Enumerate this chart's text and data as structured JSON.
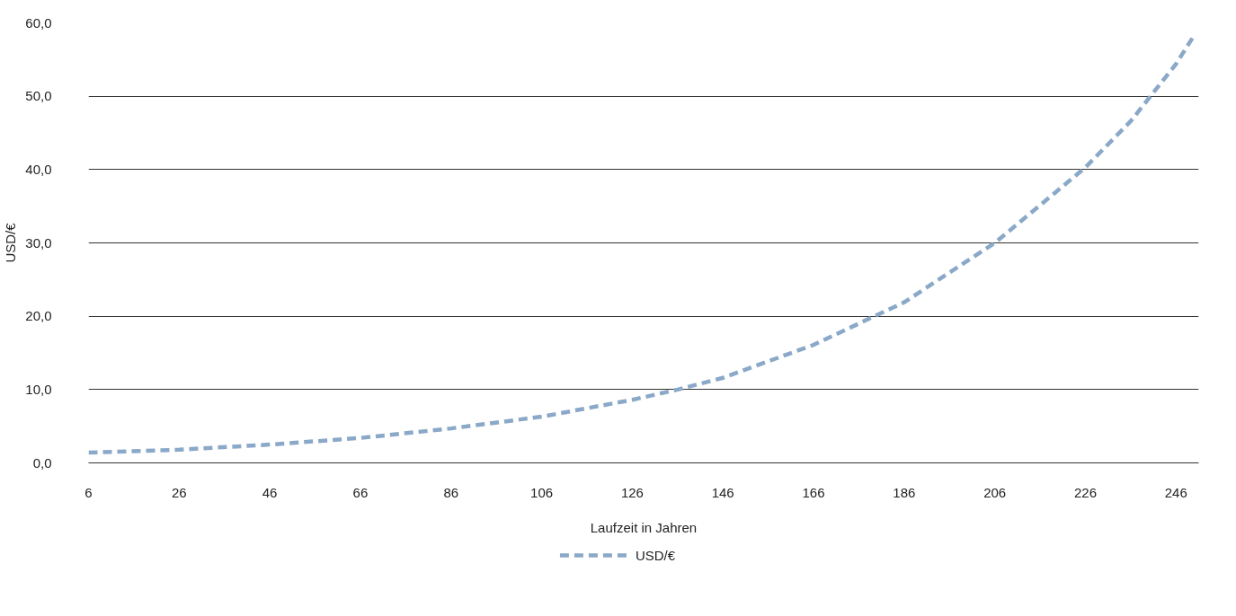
{
  "chart_data": {
    "type": "line",
    "xlabel": "Laufzeit in Jahren",
    "ylabel": "USD/€",
    "x": [
      6,
      26,
      46,
      66,
      86,
      106,
      126,
      136,
      146,
      166,
      186,
      206,
      226,
      236,
      246,
      250
    ],
    "series": [
      {
        "name": "USD/€",
        "color": "#8aa8c8",
        "values": [
          1.4,
          1.8,
          2.5,
          3.4,
          4.7,
          6.3,
          8.6,
          10.0,
          11.6,
          16.1,
          21.9,
          30.0,
          40.3,
          46.6,
          54.4,
          58.3
        ]
      }
    ],
    "xlim": [
      6,
      251
    ],
    "xticks": [
      6,
      26,
      46,
      66,
      86,
      106,
      126,
      146,
      166,
      186,
      206,
      226,
      246
    ],
    "ylim": [
      0,
      60
    ],
    "yticks": [
      {
        "value": 0,
        "label": "0,0"
      },
      {
        "value": 10,
        "label": "10,0"
      },
      {
        "value": 20,
        "label": "20,0"
      },
      {
        "value": 30,
        "label": "30,0"
      },
      {
        "value": 40,
        "label": "40,0"
      },
      {
        "value": 50,
        "label": "50,0"
      },
      {
        "value": 60,
        "label": "60,0"
      }
    ],
    "grid": "y",
    "legend": "bottom",
    "line_style": "dashed",
    "marker": "none"
  }
}
